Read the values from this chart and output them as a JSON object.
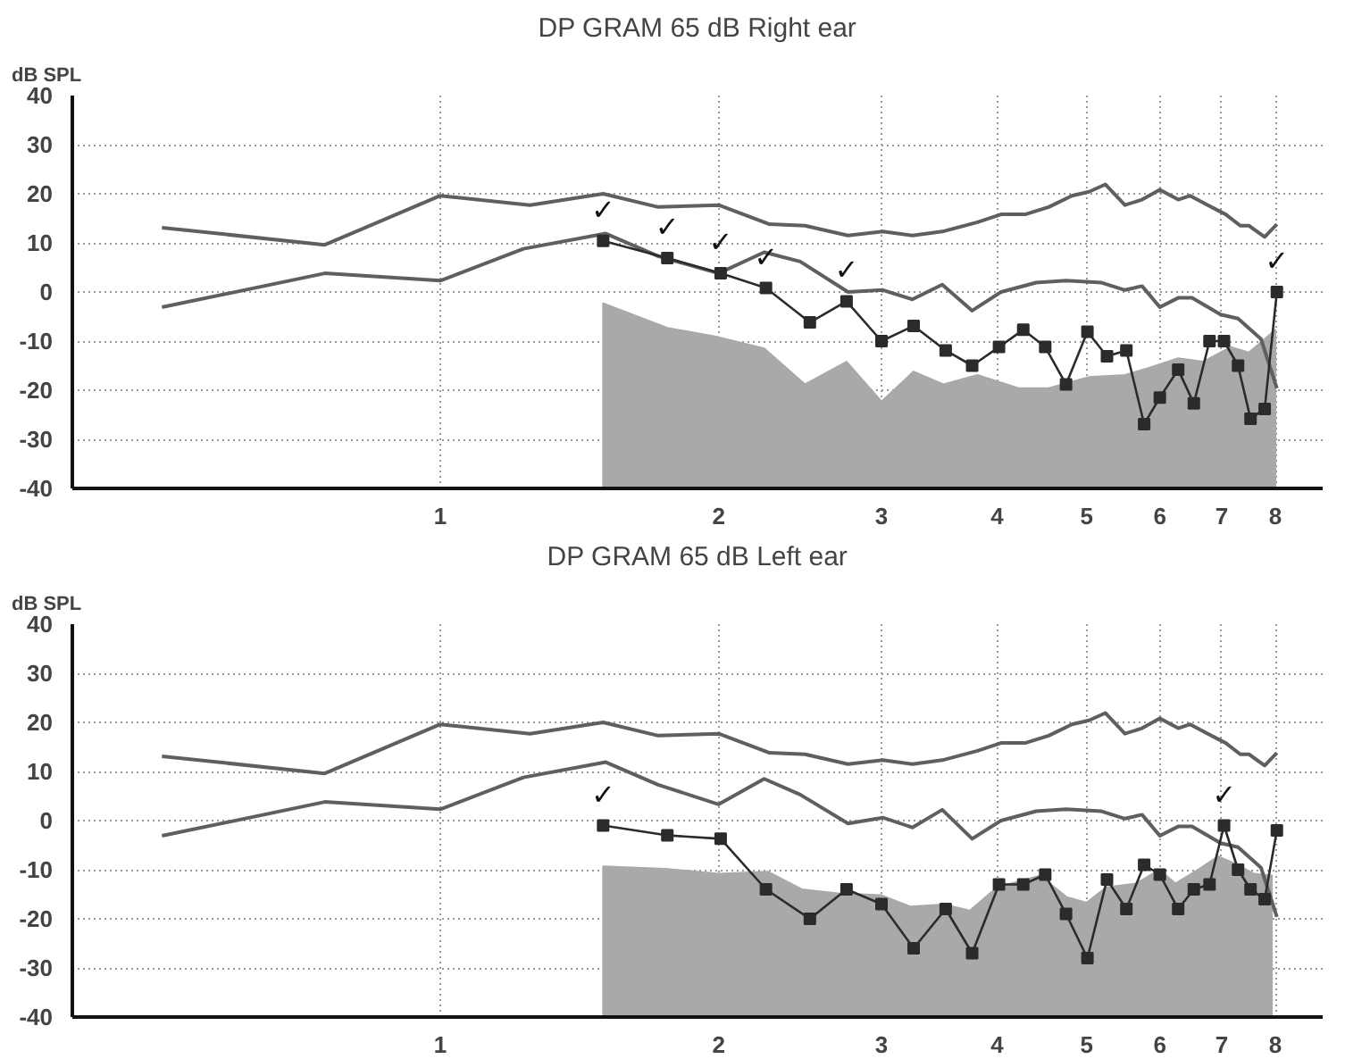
{
  "chart_data": [
    {
      "type": "line",
      "title": "DP GRAM 65 dB Right ear",
      "ylabel": "dB SPL",
      "log": "x",
      "xlim": [
        0.4,
        9
      ],
      "ylim": [
        -40,
        40
      ],
      "xticks": [
        1,
        2,
        3,
        4,
        5,
        6,
        7,
        8
      ],
      "yticks": [
        -40,
        -30,
        -20,
        -10,
        0,
        10,
        20,
        30,
        40
      ],
      "grid": true,
      "series": [
        {
          "type": "area",
          "color": "#a9a9a9",
          "x": [
            1.5,
            1.5,
            1.76,
            2.0,
            2.24,
            2.48,
            2.75,
            3.0,
            3.25,
            3.5,
            3.81,
            4.22,
            4.55,
            5.03,
            5.5,
            5.85,
            6.28,
            6.68,
            7.16,
            7.49,
            7.79,
            8.0,
            8.0
          ],
          "values": [
            -40,
            -2.3,
            -7.3,
            -9.2,
            -11.5,
            -18.8,
            -14.2,
            -22.3,
            -16.2,
            -18.8,
            -16.9,
            -19.6,
            -19.6,
            -17.3,
            -16.9,
            -15.4,
            -13.5,
            -14.2,
            -11.2,
            -12.3,
            -9.6,
            -7.7,
            -40
          ]
        },
        {
          "color": "#5f5f5f",
          "marker": "none",
          "x": [
            0.5,
            0.75,
            1.0,
            1.25,
            1.5,
            1.72,
            2.0,
            2.27,
            2.48,
            2.76,
            3.01,
            3.24,
            3.49,
            3.81,
            4.04,
            4.29,
            4.55,
            4.82,
            5.03,
            5.24,
            5.5,
            5.74,
            6.0,
            6.28,
            6.47,
            6.76,
            7.07,
            7.33,
            7.49,
            7.79,
            8.03
          ],
          "values": [
            13.1,
            9.6,
            19.6,
            17.7,
            20,
            17.3,
            17.7,
            13.8,
            13.5,
            11.5,
            12.3,
            11.5,
            12.3,
            14.2,
            15.8,
            15.8,
            17.3,
            19.6,
            20.4,
            21.9,
            17.7,
            18.8,
            20.8,
            18.8,
            19.6,
            17.7,
            15.8,
            13.5,
            13.5,
            11.2,
            13.8
          ]
        },
        {
          "color": "#5f5f5f",
          "marker": "none",
          "x": [
            0.5,
            0.75,
            1.0,
            1.23,
            1.51,
            1.72,
            2.0,
            2.24,
            2.45,
            2.76,
            3.01,
            3.24,
            3.49,
            3.76,
            4.04,
            4.41,
            4.75,
            5.19,
            5.5,
            5.74,
            6.0,
            6.28,
            6.5,
            6.98,
            7.29,
            7.72,
            8.03
          ],
          "values": [
            -3.1,
            3.8,
            2.3,
            8.8,
            11.9,
            7.3,
            3.8,
            8.1,
            6.2,
            0,
            0.4,
            -1.5,
            1.5,
            -3.8,
            0,
            1.9,
            2.3,
            1.9,
            0.4,
            1.2,
            -3.1,
            -1.2,
            -1.2,
            -4.6,
            -5.4,
            -9.6,
            -19.6
          ]
        },
        {
          "color": "#2b2b2b",
          "marker": "square",
          "x": [
            1.5,
            1.76,
            2.01,
            2.25,
            2.51,
            2.75,
            3.0,
            3.25,
            3.52,
            3.76,
            4.02,
            4.27,
            4.51,
            4.75,
            5.01,
            5.26,
            5.52,
            5.77,
            6.0,
            6.28,
            6.53,
            6.79,
            7.04,
            7.29,
            7.52,
            7.79,
            8.03
          ],
          "values": [
            10.4,
            6.9,
            3.8,
            0.8,
            -6.2,
            -1.9,
            -10,
            -6.9,
            -11.9,
            -15,
            -11.2,
            -7.7,
            -11.2,
            -18.8,
            -8.1,
            -13.1,
            -11.9,
            -26.9,
            -21.5,
            -15.8,
            -22.7,
            -10,
            -10,
            -15,
            -25.8,
            -23.8,
            0
          ]
        }
      ],
      "annotations": [
        {
          "text": "✓",
          "x": 1.5,
          "y": 10.4
        },
        {
          "text": "✓",
          "x": 1.76,
          "y": 6.9
        },
        {
          "text": "✓",
          "x": 2.01,
          "y": 3.8
        },
        {
          "text": "✓",
          "x": 2.25,
          "y": 0.8
        },
        {
          "text": "✓",
          "x": 2.75,
          "y": -1.9
        },
        {
          "text": "✓",
          "x": 8.03,
          "y": 0
        }
      ]
    },
    {
      "type": "line",
      "title": "DP GRAM 65 dB Left ear",
      "ylabel": "dB SPL",
      "log": "x",
      "xlim": [
        0.4,
        9
      ],
      "ylim": [
        -40,
        40
      ],
      "xticks": [
        1,
        2,
        3,
        4,
        5,
        6,
        7,
        8
      ],
      "yticks": [
        -40,
        -30,
        -20,
        -10,
        0,
        10,
        20,
        30,
        40
      ],
      "grid": true,
      "series": [
        {
          "type": "area",
          "color": "#a9a9a9",
          "x": [
            1.5,
            1.5,
            1.75,
            2.0,
            2.26,
            2.46,
            2.69,
            3.0,
            3.22,
            3.5,
            3.74,
            4.0,
            4.45,
            4.76,
            5.0,
            5.25,
            5.66,
            5.99,
            6.24,
            6.55,
            6.94,
            7.26,
            7.58,
            7.93,
            7.93
          ],
          "values": [
            -40,
            -9.3,
            -9.8,
            -10.8,
            -10.4,
            -14,
            -14.8,
            -15.2,
            -17.5,
            -17.1,
            -18.3,
            -13.6,
            -11.2,
            -15.6,
            -16.7,
            -13.6,
            -12.8,
            -10,
            -12.8,
            -10.4,
            -7.3,
            -8.9,
            -10.8,
            -11.2,
            -40
          ]
        },
        {
          "color": "#5f5f5f",
          "marker": "none",
          "x": [
            0.5,
            0.75,
            1.0,
            1.25,
            1.5,
            1.72,
            2.0,
            2.27,
            2.48,
            2.76,
            3.01,
            3.24,
            3.49,
            3.81,
            4.04,
            4.29,
            4.55,
            4.82,
            5.03,
            5.24,
            5.5,
            5.74,
            6.0,
            6.28,
            6.47,
            6.76,
            7.07,
            7.33,
            7.49,
            7.79,
            8.03
          ],
          "values": [
            13.1,
            9.6,
            19.6,
            17.7,
            20,
            17.3,
            17.7,
            13.8,
            13.5,
            11.5,
            12.3,
            11.5,
            12.3,
            14.2,
            15.8,
            15.8,
            17.3,
            19.6,
            20.4,
            21.9,
            17.7,
            18.8,
            20.8,
            18.8,
            19.6,
            17.7,
            15.8,
            13.5,
            13.5,
            11.2,
            13.8
          ]
        },
        {
          "color": "#5f5f5f",
          "marker": "none",
          "x": [
            0.5,
            0.75,
            1.0,
            1.23,
            1.51,
            1.72,
            2.0,
            2.24,
            2.45,
            2.76,
            3.01,
            3.24,
            3.49,
            3.76,
            4.04,
            4.41,
            4.75,
            5.19,
            5.5,
            5.74,
            6.0,
            6.28,
            6.5,
            6.98,
            7.29,
            7.72,
            8.03
          ],
          "values": [
            -3.1,
            3.8,
            2.3,
            8.8,
            11.9,
            7.3,
            3.3,
            8.5,
            5.3,
            -0.6,
            0.6,
            -1.4,
            2.2,
            -3.7,
            0,
            1.9,
            2.3,
            1.9,
            0.4,
            1.2,
            -3.1,
            -1.2,
            -1.2,
            -4.6,
            -5.4,
            -9.6,
            -19.6
          ]
        },
        {
          "color": "#2b2b2b",
          "marker": "square",
          "x": [
            1.5,
            1.76,
            2.01,
            2.25,
            2.51,
            2.75,
            3.0,
            3.25,
            3.52,
            3.76,
            4.02,
            4.27,
            4.51,
            4.75,
            5.01,
            5.26,
            5.52,
            5.77,
            6.0,
            6.28,
            6.53,
            6.79,
            7.04,
            7.29,
            7.52,
            7.79,
            8.03
          ],
          "values": [
            -1,
            -3,
            -3.7,
            -14,
            -20,
            -14,
            -17,
            -26,
            -18,
            -27,
            -13,
            -13,
            -11,
            -19,
            -28,
            -12,
            -18,
            -9,
            -11,
            -18,
            -14,
            -13,
            -1,
            -10,
            -14,
            -16,
            -2
          ]
        }
      ],
      "annotations": [
        {
          "text": "✓",
          "x": 1.5,
          "y": -1
        },
        {
          "text": "✓",
          "x": 7.04,
          "y": -1
        }
      ]
    }
  ]
}
